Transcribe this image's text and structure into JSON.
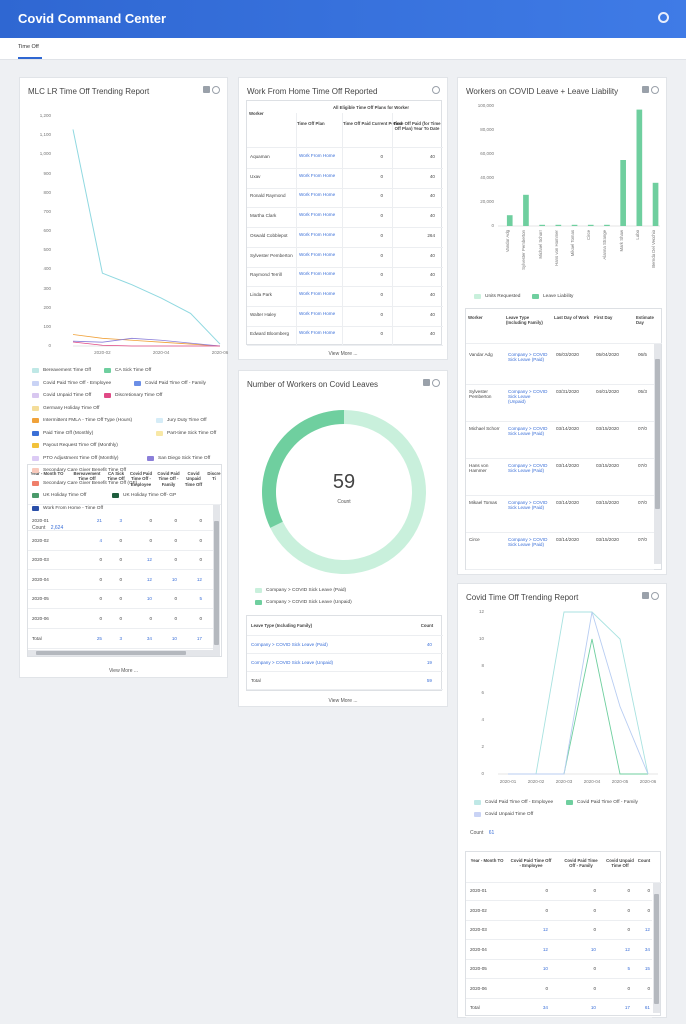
{
  "app_title": "Covid Command Center",
  "tab": "Time Off",
  "colors": {
    "header": "#2f67d2",
    "teal_light": "#8fd8e0",
    "green": "#6fcf9f",
    "green_light": "#c9f0dc",
    "link": "#3a6fd8"
  },
  "card1": {
    "title": "MLC LR Time Off Trending Report",
    "y_ticks": [
      "1,200",
      "1,100",
      "1,000",
      "900",
      "800",
      "700",
      "600",
      "500",
      "400",
      "300",
      "200",
      "100",
      "0"
    ],
    "x_ticks": [
      "2020-02",
      "2020-04",
      "2020-06"
    ],
    "legend": [
      {
        "label": "Bereavement Time Off",
        "color": "#bfe8e6"
      },
      {
        "label": "CA Sick Time Off",
        "color": "#6fcf9f"
      },
      {
        "label": "Covid Paid Time Off - Employee",
        "color": "#c9d3f5"
      },
      {
        "label": "Covid Paid Time Off - Family",
        "color": "#6b8ee6"
      },
      {
        "label": "Covid Unpaid Time Off",
        "color": "#d8c7f0"
      },
      {
        "label": "Discretionary Time Off",
        "color": "#e04a86"
      },
      {
        "label": "Germany Holiday Time Off",
        "color": "#f4dd9a"
      },
      {
        "label": "Intermittent FMLA - Time Off Type (Hours)",
        "color": "#f0a23a"
      },
      {
        "label": "Jury Duty Time Off",
        "color": "#d5ecf7"
      },
      {
        "label": "Paid Time Off (Monthly)",
        "color": "#3b6fd6"
      },
      {
        "label": "Part-time Sick Time Off",
        "color": "#f8e8a6"
      },
      {
        "label": "Payout Request Time Off (Monthly)",
        "color": "#f2c23a"
      },
      {
        "label": "PTO Adjustment Time Off (Monthly)",
        "color": "#dccbf5"
      },
      {
        "label": "San Diego Sick Time Off",
        "color": "#8b7fd9"
      },
      {
        "label": "Secondary Care Giver Benefit Time Off",
        "color": "#f9c9bb"
      },
      {
        "label": "Secondary Care Giver Benefit Time Off (GF)",
        "color": "#ef7f6a"
      },
      {
        "label": "UK Holiday Time Off",
        "color": "#4a9a6a"
      },
      {
        "label": "UK Holiday Time Off- GP",
        "color": "#1f5e3e"
      },
      {
        "label": "Work From Home - Time Off",
        "color": "#2a4fa8"
      }
    ],
    "count_label": "Count",
    "count_value": "2,624",
    "table": {
      "headers": [
        "Year - Month TO",
        "Bereavement Time Off",
        "CA Sick Time Off",
        "Covid Paid Time Off - Employee",
        "Covid Paid Time Off - Family",
        "Covid Unpaid Time Off",
        "Discre Ti"
      ],
      "rows": [
        [
          "2020-01",
          "21",
          "3",
          "0",
          "0",
          "0"
        ],
        [
          "2020-02",
          "4",
          "0",
          "0",
          "0",
          "0"
        ],
        [
          "2020-03",
          "0",
          "0",
          "12",
          "0",
          "0"
        ],
        [
          "2020-04",
          "0",
          "0",
          "12",
          "10",
          "12"
        ],
        [
          "2020-05",
          "0",
          "0",
          "10",
          "0",
          "5"
        ],
        [
          "2020-06",
          "0",
          "0",
          "0",
          "0",
          "0"
        ],
        [
          "Total",
          "25",
          "3",
          "34",
          "10",
          "17"
        ]
      ]
    },
    "view_more": "View More ..."
  },
  "card2": {
    "title": "Work From Home Time Off Reported",
    "group_header": "All Eligible Time Off Plans for Worker",
    "headers": [
      "Worker",
      "Time Off Plan",
      "Time Off Paid Current Period",
      "Time Off Paid (for Time Off Plan) Year To Date"
    ],
    "rows": [
      [
        "Aquaman",
        "Work From Home",
        "0",
        "40"
      ],
      [
        "Uxav",
        "Work From Home",
        "0",
        "40"
      ],
      [
        "Ronald Raymond",
        "Work From Home",
        "0",
        "40"
      ],
      [
        "Martha Clark",
        "Work From Home",
        "0",
        "40"
      ],
      [
        "Oswald Cobblepot",
        "Work From Home",
        "0",
        "264"
      ],
      [
        "Sylvester Pemberton",
        "Work From Home",
        "0",
        "40"
      ],
      [
        "Raymond Terrill",
        "Work From Home",
        "0",
        "40"
      ],
      [
        "Linda Park",
        "Work From Home",
        "0",
        "40"
      ],
      [
        "Walter Haley",
        "Work From Home",
        "0",
        "40"
      ],
      [
        "Edward Bloomberg",
        "Work From Home",
        "0",
        "40"
      ]
    ],
    "view_more": "View More ..."
  },
  "card3": {
    "title": "Number of Workers on Covid Leaves",
    "center_value": "59",
    "center_label": "Count",
    "legend": [
      {
        "label": "Company > COVID Sick Leave (Paid)",
        "color": "#c9f0dc"
      },
      {
        "label": "Company > COVID Sick Leave (Unpaid)",
        "color": "#6fcf9f"
      }
    ],
    "table_headers": [
      "Leave Type (Including Family)",
      "Count"
    ],
    "rows": [
      [
        "Company > COVID Sick Leave (Paid)",
        "40"
      ],
      [
        "Company > COVID Sick Leave (Unpaid)",
        "19"
      ],
      [
        "Total",
        "59"
      ]
    ],
    "view_more": "View More ..."
  },
  "card4": {
    "title": "Workers on COVID Leave + Leave Liability",
    "y_ticks": [
      "100,000",
      "80,000",
      "60,000",
      "40,000",
      "20,000",
      "0"
    ],
    "categories": [
      "Vandar Adg",
      "Sylvester Pemberton",
      "Michael Schorr",
      "Hans von Hammer",
      "Mikael Tomas",
      "Circe",
      "Alanna Strange",
      "Mark Shaw",
      "Lobo",
      "Bernda Del Vecchio"
    ],
    "legend": [
      {
        "label": "Units Requested",
        "color": "#c9f0dc"
      },
      {
        "label": "Leave Liability",
        "color": "#6fcf9f"
      }
    ],
    "table_headers": [
      "Worker",
      "Leave Type (Including Family)",
      "Last Day of Work",
      "First Day",
      "Estimate Day"
    ],
    "rows": [
      [
        "Vandar Adg",
        "Company > COVID Sick Leave (Paid)",
        "05/03/2020",
        "05/04/2020",
        "06/5"
      ],
      [
        "Sylvester Pemberton",
        "Company > COVID Sick Leave (Unpaid)",
        "03/31/2020",
        "04/01/2020",
        "05/3"
      ],
      [
        "Michael Schorr",
        "Company > COVID Sick Leave (Paid)",
        "03/14/2020",
        "03/15/2020",
        "07/0"
      ],
      [
        "Hans von Hammer",
        "Company > COVID Sick Leave (Paid)",
        "03/14/2020",
        "03/15/2020",
        "07/0"
      ],
      [
        "Mikael Tomas",
        "Company > COVID Sick Leave (Paid)",
        "03/14/2020",
        "03/15/2020",
        "07/0"
      ],
      [
        "Circe",
        "Company > COVID Sick Leave (Paid)",
        "03/14/2020",
        "03/15/2020",
        "07/0"
      ]
    ]
  },
  "card5": {
    "title": "Covid Time Off Trending Report",
    "y_ticks": [
      "12",
      "10",
      "8",
      "6",
      "4",
      "2",
      "0"
    ],
    "x_ticks": [
      "2020-01",
      "2020-02",
      "2020-03",
      "2020-04",
      "2020-05",
      "2020-06"
    ],
    "legend": [
      {
        "label": "Covid Paid Time Off - Employee",
        "color": "#bfe8e6"
      },
      {
        "label": "Covid Paid Time Off - Family",
        "color": "#6fcf9f"
      },
      {
        "label": "Covid Unpaid Time Off",
        "color": "#c9d3f5"
      }
    ],
    "count_label": "Count",
    "count_value": "61",
    "table_headers": [
      "Year - Month TO",
      "Covid Paid Time Off - Employee",
      "Covid Paid Time Off - Family",
      "Covid Unpaid Time Off",
      "Count"
    ],
    "rows": [
      [
        "2020-01",
        "0",
        "0",
        "0",
        "0"
      ],
      [
        "2020-02",
        "0",
        "0",
        "0",
        "0"
      ],
      [
        "2020-03",
        "12",
        "0",
        "0",
        "12"
      ],
      [
        "2020-04",
        "12",
        "10",
        "12",
        "34"
      ],
      [
        "2020-05",
        "10",
        "0",
        "5",
        "15"
      ],
      [
        "2020-06",
        "0",
        "0",
        "0",
        "0"
      ],
      [
        "Total",
        "34",
        "10",
        "17",
        "61"
      ]
    ]
  },
  "chart_data": [
    {
      "type": "line",
      "title": "MLC LR Time Off Trending Report",
      "x": [
        "2020-01",
        "2020-02",
        "2020-03",
        "2020-04",
        "2020-05",
        "2020-06"
      ],
      "ylim": [
        0,
        1200
      ],
      "series": [
        {
          "name": "Paid Time Off (Monthly)",
          "values": [
            1130,
            380,
            320,
            250,
            170,
            10
          ]
        },
        {
          "name": "Intermittent FMLA - Time Off Type (Hours)",
          "values": [
            60,
            40,
            30,
            20,
            10,
            0
          ]
        },
        {
          "name": "San Diego Sick Time Off",
          "values": [
            25,
            20,
            40,
            30,
            15,
            0
          ]
        },
        {
          "name": "Bereavement Time Off",
          "values": [
            21,
            4,
            0,
            0,
            0,
            0
          ]
        }
      ]
    },
    {
      "type": "bar",
      "title": "Workers on COVID Leave + Leave Liability",
      "categories": [
        "Vandar Adg",
        "Sylvester Pemberton",
        "Michael Schorr",
        "Hans von Hammer",
        "Mikael Tomas",
        "Circe",
        "Alanna Strange",
        "Mark Shaw",
        "Lobo",
        "Bernda Del Vecchio"
      ],
      "ylim": [
        0,
        100000
      ],
      "series": [
        {
          "name": "Units Requested",
          "values": [
            0,
            0,
            0,
            0,
            0,
            0,
            0,
            0,
            0,
            0
          ]
        },
        {
          "name": "Leave Liability",
          "values": [
            9000,
            26000,
            1000,
            1000,
            1000,
            1000,
            1000,
            55000,
            97000,
            36000
          ]
        }
      ]
    },
    {
      "type": "pie",
      "title": "Number of Workers on Covid Leaves",
      "categories": [
        "Company > COVID Sick Leave (Paid)",
        "Company > COVID Sick Leave (Unpaid)"
      ],
      "values": [
        40,
        19
      ]
    },
    {
      "type": "line",
      "title": "Covid Time Off Trending Report",
      "x": [
        "2020-01",
        "2020-02",
        "2020-03",
        "2020-04",
        "2020-05",
        "2020-06"
      ],
      "ylim": [
        0,
        12
      ],
      "series": [
        {
          "name": "Covid Paid Time Off - Employee",
          "values": [
            0,
            0,
            12,
            12,
            10,
            0
          ]
        },
        {
          "name": "Covid Paid Time Off - Family",
          "values": [
            0,
            0,
            0,
            10,
            0,
            0
          ]
        },
        {
          "name": "Covid Unpaid Time Off",
          "values": [
            0,
            0,
            0,
            12,
            5,
            0
          ]
        }
      ]
    }
  ]
}
